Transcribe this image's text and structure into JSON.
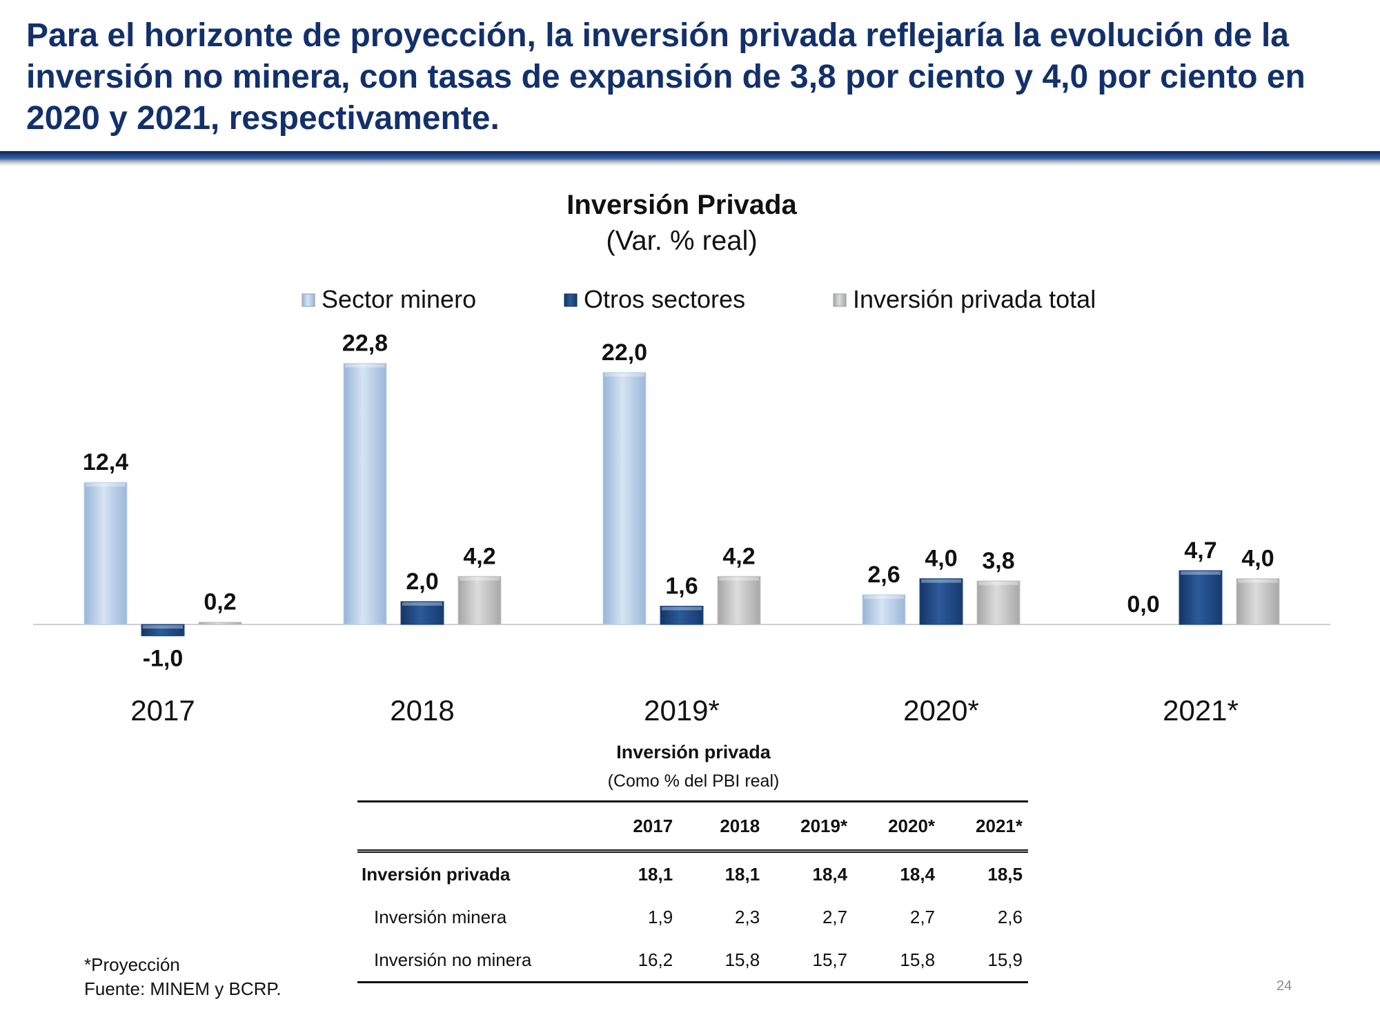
{
  "headline": "Para el horizonte de proyección, la inversión privada reflejaría la evolución de la inversión no minera, con tasas de expansión de 3,8 por ciento y 4,0 por ciento en 2020 y 2021, respectivamente.",
  "chart_data": {
    "type": "bar",
    "title": "Inversión Privada",
    "subtitle": "(Var. % real)",
    "categories": [
      "2017",
      "2018",
      "2019*",
      "2020*",
      "2021*"
    ],
    "series": [
      {
        "name": "Sector minero",
        "color": "#c3d7ef",
        "values": [
          12.4,
          22.8,
          22.0,
          2.6,
          0.0
        ],
        "labels": [
          "12,4",
          "22,8",
          "22,0",
          "2,6",
          "0,0"
        ]
      },
      {
        "name": "Otros sectores",
        "color": "#1f4b87",
        "values": [
          -1.0,
          2.0,
          1.6,
          4.0,
          4.7
        ],
        "labels": [
          "-1,0",
          "2,0",
          "1,6",
          "4,0",
          "4,7"
        ]
      },
      {
        "name": "Inversión privada total",
        "color": "#c8c8c8",
        "values": [
          0.2,
          4.2,
          4.2,
          3.8,
          4.0
        ],
        "labels": [
          "0,2",
          "4,2",
          "4,2",
          "3,8",
          "4,0"
        ]
      }
    ],
    "ylim": [
      -2,
      25
    ],
    "xlabel": "",
    "ylabel": "",
    "legend": "top"
  },
  "table": {
    "title": "Inversión privada",
    "subtitle": "(Como % del PBI real)",
    "columns": [
      "",
      "2017",
      "2018",
      "2019*",
      "2020*",
      "2021*"
    ],
    "rows": [
      {
        "label": "Inversión privada",
        "values": [
          "18,1",
          "18,1",
          "18,4",
          "18,4",
          "18,5"
        ]
      },
      {
        "label": "Inversión minera",
        "values": [
          "1,9",
          "2,3",
          "2,7",
          "2,7",
          "2,6"
        ]
      },
      {
        "label": "Inversión no minera",
        "values": [
          "16,2",
          "15,8",
          "15,7",
          "15,8",
          "15,9"
        ]
      }
    ]
  },
  "footnotes": {
    "projection": "*Proyección",
    "source": "Fuente: MINEM y BCRP."
  },
  "page_number": "24"
}
